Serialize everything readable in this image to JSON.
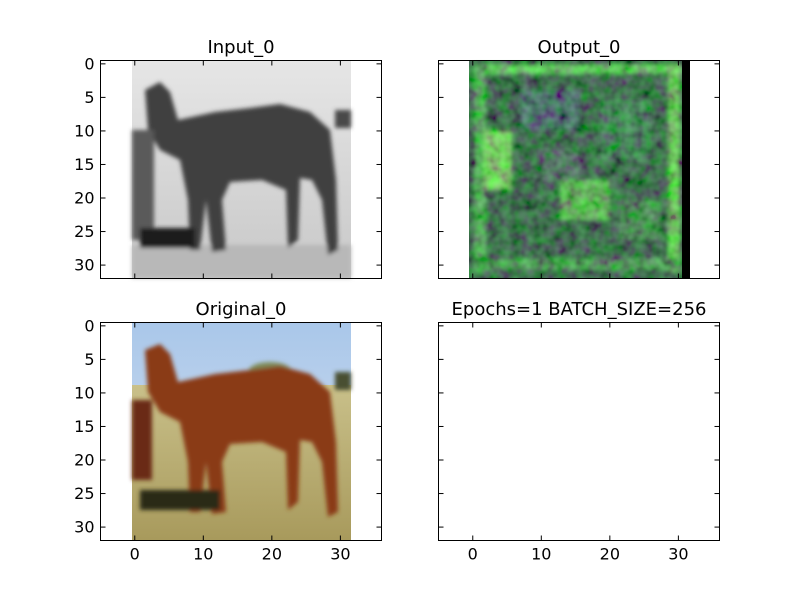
{
  "figure": {
    "background": "#ffffff",
    "x_ticks": [
      "0",
      "10",
      "20",
      "30"
    ],
    "y_ticks": [
      "0",
      "5",
      "10",
      "15",
      "20",
      "25",
      "30"
    ]
  },
  "chart_data": [
    {
      "type": "heatmap",
      "title": "Input_0",
      "image": "grayscale horse",
      "xlim": [
        -5,
        36
      ],
      "ylim": [
        32,
        -0.5
      ],
      "x_ticks": [
        0,
        10,
        20,
        30
      ],
      "y_ticks": [
        0,
        5,
        10,
        15,
        20,
        25,
        30
      ],
      "show_x_ticklabels": false,
      "show_y_ticklabels": true
    },
    {
      "type": "heatmap",
      "title": "Output_0",
      "image": "green/black noisy reconstruction",
      "xlim": [
        -5,
        36
      ],
      "ylim": [
        32,
        -0.5
      ],
      "x_ticks": [
        0,
        10,
        20,
        30
      ],
      "y_ticks": [
        0,
        5,
        10,
        15,
        20,
        25,
        30
      ],
      "show_x_ticklabels": false,
      "show_y_ticklabels": false
    },
    {
      "type": "heatmap",
      "title": "Original_0",
      "image": "color horse on grass",
      "xlim": [
        -5,
        36
      ],
      "ylim": [
        32,
        -0.5
      ],
      "x_ticks": [
        0,
        10,
        20,
        30
      ],
      "y_ticks": [
        0,
        5,
        10,
        15,
        20,
        25,
        30
      ],
      "show_x_ticklabels": true,
      "show_y_ticklabels": true
    },
    {
      "type": "heatmap",
      "title": "Epochs=1 BATCH_SIZE=256",
      "image": "empty",
      "xlim": [
        -5,
        36
      ],
      "ylim": [
        32,
        -0.5
      ],
      "x_ticks": [
        0,
        10,
        20,
        30
      ],
      "y_ticks": [
        0,
        5,
        10,
        15,
        20,
        25,
        30
      ],
      "show_x_ticklabels": true,
      "show_y_ticklabels": false
    }
  ]
}
